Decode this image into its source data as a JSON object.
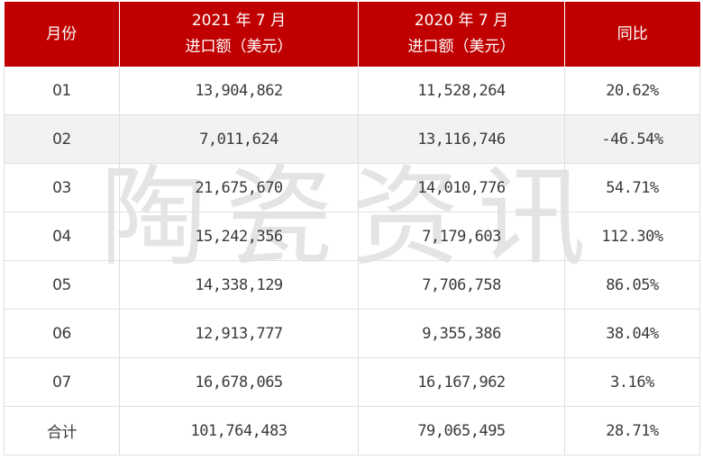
{
  "table": {
    "headers": [
      {
        "line1": "月份",
        "line2": ""
      },
      {
        "line1": "2021 年 7 月",
        "line2": "进口额（美元）"
      },
      {
        "line1": "2020 年 7 月",
        "line2": "进口额（美元）"
      },
      {
        "line1": "同比",
        "line2": ""
      }
    ],
    "rows": [
      [
        "01",
        "13,904,862",
        "11,528,264",
        "20.62%"
      ],
      [
        "02",
        "7,011,624",
        "13,116,746",
        "-46.54%"
      ],
      [
        "03",
        "21,675,670",
        "14,010,776",
        "54.71%"
      ],
      [
        "04",
        "15,242,356",
        "7,179,603",
        "112.30%"
      ],
      [
        "05",
        "14,338,129",
        "7,706,758",
        "86.05%"
      ],
      [
        "06",
        "12,913,777",
        "9,355,386",
        "38.04%"
      ],
      [
        "07",
        "16,678,065",
        "16,167,962",
        "3.16%"
      ],
      [
        "合计",
        "101,764,483",
        "79,065,495",
        "28.71%"
      ]
    ]
  },
  "watermark": {
    "text": "陶瓷资讯"
  },
  "colors": {
    "header_bg": "#c00000",
    "header_text": "#ffffff",
    "alt_row": "#f2f2f2",
    "border": "#e0e0e0"
  }
}
